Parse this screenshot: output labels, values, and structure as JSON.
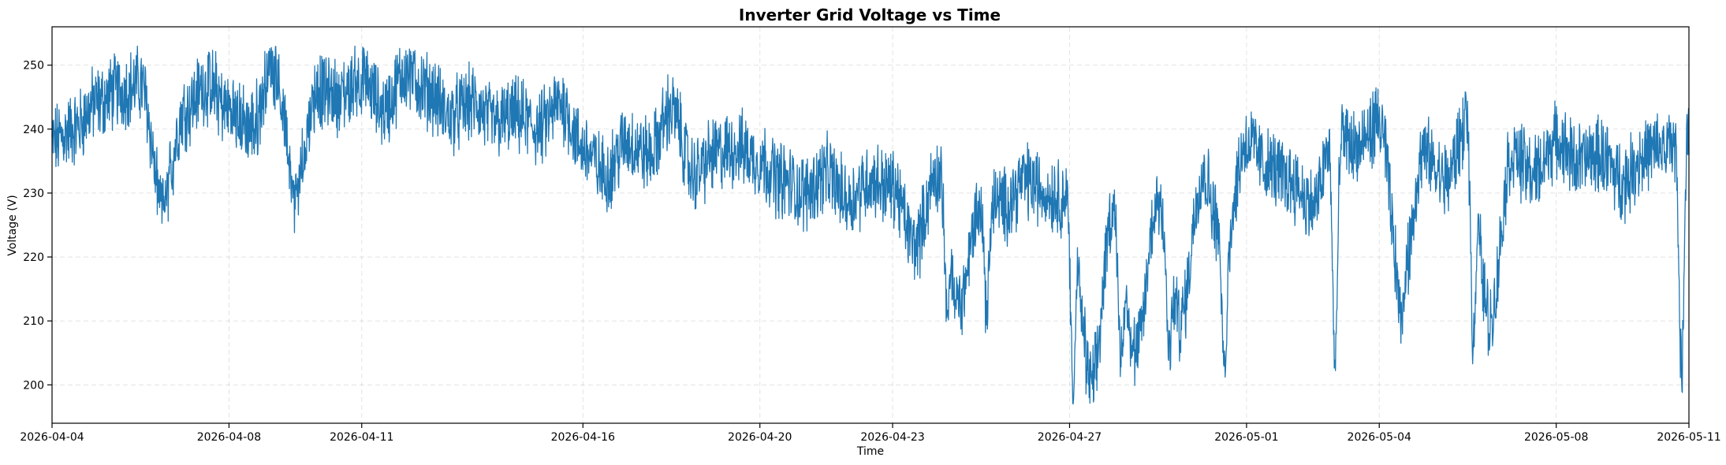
{
  "chart_data": {
    "type": "line",
    "title": "Inverter Grid Voltage vs Time",
    "xlabel": "Time",
    "ylabel": "Voltage (V)",
    "xlim": [
      "2026-04-04",
      "2026-05-11"
    ],
    "ylim": [
      194,
      256
    ],
    "x_ticks": [
      "2026-04-04",
      "2026-04-08",
      "2026-04-11",
      "2026-04-16",
      "2026-04-20",
      "2026-04-23",
      "2026-04-27",
      "2026-05-01",
      "2026-05-04",
      "2026-05-08",
      "2026-05-11"
    ],
    "y_ticks": [
      200,
      210,
      220,
      230,
      240,
      250
    ],
    "grid": true,
    "series": [
      {
        "color": "#1f77b4",
        "x": [
          "2026-04-04 00:00",
          "2026-04-04 12:00",
          "2026-04-05 00:00",
          "2026-04-05 12:00",
          "2026-04-06 00:00",
          "2026-04-06 12:00",
          "2026-04-07 00:00",
          "2026-04-07 12:00",
          "2026-04-08 00:00",
          "2026-04-08 12:00",
          "2026-04-09 00:00",
          "2026-04-09 12:00",
          "2026-04-10 00:00",
          "2026-04-10 12:00",
          "2026-04-11 00:00",
          "2026-04-11 12:00",
          "2026-04-12 00:00",
          "2026-04-12 12:00",
          "2026-04-13 00:00",
          "2026-04-13 12:00",
          "2026-04-14 00:00",
          "2026-04-14 12:00",
          "2026-04-15 00:00",
          "2026-04-15 12:00",
          "2026-04-16 00:00",
          "2026-04-16 12:00",
          "2026-04-17 00:00",
          "2026-04-17 12:00",
          "2026-04-18 00:00",
          "2026-04-18 12:00",
          "2026-04-19 00:00",
          "2026-04-19 12:00",
          "2026-04-20 00:00",
          "2026-04-20 12:00",
          "2026-04-21 00:00",
          "2026-04-21 12:00",
          "2026-04-22 00:00",
          "2026-04-22 12:00",
          "2026-04-23 00:00",
          "2026-04-23 12:00",
          "2026-04-24 00:00",
          "2026-04-24 12:00",
          "2026-04-25 00:00",
          "2026-04-25 12:00",
          "2026-04-26 00:00",
          "2026-04-26 12:00",
          "2026-04-27 00:00",
          "2026-04-27 12:00",
          "2026-04-28 00:00",
          "2026-04-28 12:00",
          "2026-04-29 00:00",
          "2026-04-29 12:00",
          "2026-04-30 00:00",
          "2026-04-30 12:00",
          "2026-05-01 00:00",
          "2026-05-01 12:00",
          "2026-05-02 00:00",
          "2026-05-02 12:00",
          "2026-05-03 00:00",
          "2026-05-03 12:00",
          "2026-05-04 00:00",
          "2026-05-04 12:00",
          "2026-05-05 00:00",
          "2026-05-05 12:00",
          "2026-05-06 00:00",
          "2026-05-06 12:00",
          "2026-05-07 00:00",
          "2026-05-07 12:00",
          "2026-05-08 00:00",
          "2026-05-08 12:00",
          "2026-05-09 00:00",
          "2026-05-09 12:00",
          "2026-05-10 00:00",
          "2026-05-10 12:00",
          "2026-05-11 00:00"
        ],
        "values": [
          238,
          240,
          244,
          246,
          247,
          229,
          243,
          247,
          243,
          240,
          250,
          232,
          246,
          245,
          248,
          243,
          249,
          246,
          242,
          244,
          241,
          242,
          240,
          244,
          237,
          233,
          238,
          236,
          243,
          233,
          236,
          237,
          235,
          232,
          230,
          233,
          229,
          232,
          231,
          222,
          233,
          213,
          229,
          228,
          232,
          230,
          229,
          200,
          228,
          205,
          229,
          210,
          233,
          222,
          238,
          234,
          232,
          228,
          240,
          237,
          241,
          215,
          236,
          232,
          241,
          210,
          236,
          233,
          238,
          235,
          236,
          232,
          236,
          237,
          240
        ],
        "min_dips": [
          [
            "2026-04-06 12:00",
            225
          ],
          [
            "2026-04-09 12:00",
            226
          ],
          [
            "2026-04-24 06:00",
            209
          ],
          [
            "2026-04-25 03:00",
            209
          ],
          [
            "2026-04-27 02:00",
            197
          ],
          [
            "2026-04-28 04:00",
            201
          ],
          [
            "2026-04-29 06:00",
            202
          ],
          [
            "2026-04-30 12:00",
            200
          ],
          [
            "2026-05-03 00:00",
            200
          ],
          [
            "2026-05-04 12:00",
            210
          ],
          [
            "2026-05-06 03:00",
            204
          ],
          [
            "2026-05-10 20:00",
            198
          ]
        ]
      }
    ]
  }
}
